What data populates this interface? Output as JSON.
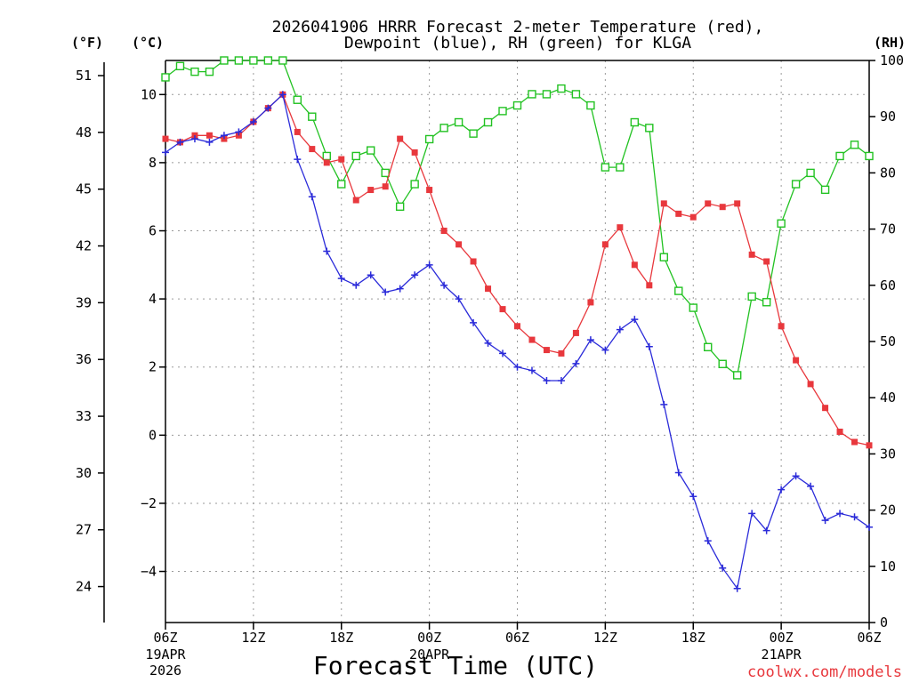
{
  "chart_data": {
    "type": "line",
    "title_line1": "2026041906 HRRR Forecast 2-meter Temperature (red),",
    "title_line2": "Dewpoint (blue), RH (green) for KLGA",
    "xlabel": "Forecast Time (UTC)",
    "credit": "coolwx.com/models",
    "axis_unit_f": "(°F)",
    "axis_unit_c": "(°C)",
    "axis_unit_rh": "(RH)",
    "ylim_c": [
      -5.5,
      11
    ],
    "ylim_rh": [
      0,
      100
    ],
    "x_range_hours": [
      0,
      48
    ],
    "x_ticks": [
      {
        "hour": 0,
        "label": "06Z",
        "sub1": "19APR",
        "sub2": "2026"
      },
      {
        "hour": 6,
        "label": "12Z",
        "sub1": "",
        "sub2": ""
      },
      {
        "hour": 12,
        "label": "18Z",
        "sub1": "",
        "sub2": ""
      },
      {
        "hour": 18,
        "label": "00Z",
        "sub1": "20APR",
        "sub2": ""
      },
      {
        "hour": 24,
        "label": "06Z",
        "sub1": "",
        "sub2": ""
      },
      {
        "hour": 30,
        "label": "12Z",
        "sub1": "",
        "sub2": ""
      },
      {
        "hour": 36,
        "label": "18Z",
        "sub1": "",
        "sub2": ""
      },
      {
        "hour": 42,
        "label": "00Z",
        "sub1": "21APR",
        "sub2": ""
      },
      {
        "hour": 48,
        "label": "06Z",
        "sub1": "",
        "sub2": ""
      }
    ],
    "y_ticks_c": [
      -4,
      -2,
      0,
      2,
      4,
      6,
      8,
      10
    ],
    "y_tick_labels_c": [
      "−4",
      "−2",
      "0",
      "2",
      "4",
      "6",
      "8",
      "10"
    ],
    "y_ticks_f": [
      24,
      27,
      30,
      33,
      36,
      39,
      42,
      45,
      48,
      51
    ],
    "y_ticks_rh": [
      0,
      10,
      20,
      30,
      40,
      50,
      60,
      70,
      80,
      90,
      100
    ],
    "hours": [
      0,
      1,
      2,
      3,
      4,
      5,
      6,
      7,
      8,
      9,
      10,
      11,
      12,
      13,
      14,
      15,
      16,
      17,
      18,
      19,
      20,
      21,
      22,
      23,
      24,
      25,
      26,
      27,
      28,
      29,
      30,
      31,
      32,
      33,
      34,
      35,
      36,
      37,
      38,
      39,
      40,
      41,
      42,
      43,
      44,
      45,
      46,
      47,
      48
    ],
    "series": [
      {
        "name": "Temperature",
        "unit": "C",
        "color": "#e8383d",
        "marker": "square-filled",
        "values": [
          8.7,
          8.6,
          8.8,
          8.8,
          8.7,
          8.8,
          9.2,
          9.6,
          10.0,
          8.9,
          8.4,
          8.0,
          8.1,
          6.9,
          7.2,
          7.3,
          8.7,
          8.3,
          7.2,
          6.0,
          5.6,
          5.1,
          4.3,
          3.7,
          3.2,
          2.8,
          2.5,
          2.4,
          3.0,
          3.9,
          5.6,
          6.1,
          5.0,
          4.4,
          6.8,
          6.5,
          6.4,
          6.8,
          6.7,
          6.8,
          5.3,
          5.1,
          3.2,
          2.2,
          1.5,
          0.8,
          0.1,
          -0.2,
          -0.3
        ]
      },
      {
        "name": "Dewpoint",
        "unit": "C",
        "color": "#2b2bd9",
        "marker": "plus",
        "values": [
          8.3,
          8.6,
          8.7,
          8.6,
          8.8,
          8.9,
          9.2,
          9.6,
          10.0,
          8.1,
          7.0,
          5.4,
          4.6,
          4.4,
          4.7,
          4.2,
          4.3,
          4.7,
          5.0,
          4.4,
          4.0,
          3.3,
          2.7,
          2.4,
          2.0,
          1.9,
          1.6,
          1.6,
          2.1,
          2.8,
          2.5,
          3.1,
          3.4,
          2.6,
          0.9,
          -1.1,
          -1.8,
          -3.1,
          -3.9,
          -4.5,
          -2.3,
          -2.8,
          -1.6,
          -1.2,
          -1.5,
          -2.5,
          -2.3,
          -2.4,
          -2.7
        ]
      },
      {
        "name": "RH",
        "unit": "%",
        "color": "#22c222",
        "marker": "square-open",
        "values": [
          97,
          99,
          98,
          98,
          100,
          100,
          100,
          100,
          100,
          93,
          90,
          83,
          78,
          83,
          84,
          80,
          74,
          78,
          86,
          88,
          89,
          87,
          89,
          91,
          92,
          94,
          94,
          95,
          94,
          92,
          81,
          81,
          89,
          88,
          65,
          59,
          56,
          49,
          46,
          44,
          58,
          57,
          71,
          78,
          80,
          77,
          83,
          85,
          83
        ]
      }
    ]
  }
}
